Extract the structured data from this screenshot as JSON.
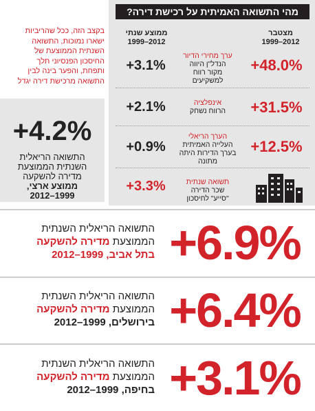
{
  "sidebar": {
    "note": [
      "בקצב הזה, ככל שהריביות",
      "ישארו נמוכות, התשואה",
      "השנתית הממוצעת של",
      "החיסכון הפנסיוני תלך",
      "ותפחת, והפער בינה לבין",
      "התשואה מרכישת דירה יגדל"
    ],
    "national": {
      "value": "+4.2%",
      "lines": [
        "התשואה הריאלית",
        "השנתית הממוצעת",
        "מדירה להשקעה"
      ],
      "place": "ממוצע ארצי,",
      "years": "2012–1999"
    }
  },
  "panel": {
    "title": "מהי התשואה האמיתית על רכישת דירה?",
    "headers": {
      "cumulative": [
        "מצטבר",
        "1999–2012"
      ],
      "annual": [
        "ממוצע שנתי",
        "1999–2012"
      ]
    },
    "rows": [
      {
        "cumulative": "+48.0%",
        "heading": "ערך מחירי הדיור",
        "text": [
          "הנדל\"ן היווה",
          "מקור רווח",
          "למשקיעים"
        ],
        "annual": "+3.1%"
      },
      {
        "cumulative": "+31.5%",
        "heading": "אינפלציה",
        "text": [
          "הרווח נשחק"
        ],
        "annual": "+2.1%"
      },
      {
        "cumulative": "+12.5%",
        "heading": "הערך הריאלי",
        "text": [
          "העלייה האמיתית",
          "בערך הדירות היתה",
          "מתונה"
        ],
        "annual": "+0.9%"
      },
      {
        "heading": "תשואה שנתית",
        "text": [
          "שכר הדירה",
          "\"סייע\" לחיסכון"
        ],
        "annual": "+3.3%"
      }
    ]
  },
  "cities": [
    {
      "value": "+6.9%",
      "line1": "התשואה הריאלית השנתית",
      "line2a": "הממוצעת",
      "line2b": "מדירה להשקעה",
      "place": "בתל אביב,",
      "years": "2012–1999"
    },
    {
      "value": "+6.4%",
      "line1": "התשואה הריאלית השנתית",
      "line2a": "הממוצעת",
      "line2b": "מדירה להשקעה",
      "place": "בירושלים,",
      "years": "2012–1999"
    },
    {
      "value": "+3.1%",
      "line1": "התשואה הריאלית השנתית",
      "line2a": "הממוצעת",
      "line2b": "מדירה להשקעה",
      "place": "בחיפה,",
      "years": "2012–1999"
    }
  ]
}
